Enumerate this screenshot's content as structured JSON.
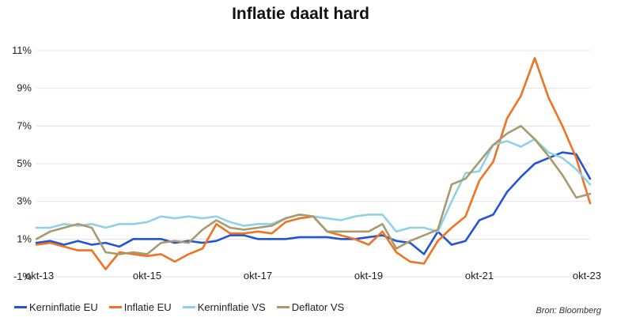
{
  "chart_data": {
    "type": "line",
    "title": "Inflatie daalt hard",
    "xlabel": "",
    "ylabel": "",
    "x_range": [
      2013.75,
      2023.75
    ],
    "x_tick_values": [
      2013.75,
      2015.75,
      2017.75,
      2019.75,
      2021.75,
      2023.75
    ],
    "x_tick_labels": [
      "okt-13",
      "okt-15",
      "okt-17",
      "okt-19",
      "okt-21",
      "okt-23"
    ],
    "ylim": [
      -1,
      11
    ],
    "y_tick_values": [
      -1,
      1,
      3,
      5,
      7,
      9,
      11
    ],
    "y_tick_labels": [
      "-1%",
      "1%",
      "3%",
      "5%",
      "7%",
      "9%",
      "11%"
    ],
    "grid": true,
    "legend_position": "bottom-left",
    "series": [
      {
        "name": "Kerninflatie EU",
        "color": "#2255d6",
        "points": [
          [
            2013.75,
            0.8
          ],
          [
            2014.0,
            0.9
          ],
          [
            2014.25,
            0.7
          ],
          [
            2014.5,
            0.9
          ],
          [
            2014.75,
            0.7
          ],
          [
            2015.0,
            0.8
          ],
          [
            2015.25,
            0.6
          ],
          [
            2015.5,
            1.0
          ],
          [
            2015.75,
            1.0
          ],
          [
            2016.0,
            1.0
          ],
          [
            2016.25,
            0.8
          ],
          [
            2016.5,
            0.9
          ],
          [
            2016.75,
            0.8
          ],
          [
            2017.0,
            0.9
          ],
          [
            2017.25,
            1.2
          ],
          [
            2017.5,
            1.2
          ],
          [
            2017.75,
            1.0
          ],
          [
            2018.0,
            1.0
          ],
          [
            2018.25,
            1.0
          ],
          [
            2018.5,
            1.1
          ],
          [
            2018.75,
            1.1
          ],
          [
            2019.0,
            1.1
          ],
          [
            2019.25,
            1.0
          ],
          [
            2019.5,
            1.0
          ],
          [
            2019.75,
            1.1
          ],
          [
            2020.0,
            1.2
          ],
          [
            2020.25,
            0.9
          ],
          [
            2020.5,
            0.8
          ],
          [
            2020.75,
            0.2
          ],
          [
            2021.0,
            1.4
          ],
          [
            2021.25,
            0.7
          ],
          [
            2021.5,
            0.9
          ],
          [
            2021.75,
            2.0
          ],
          [
            2022.0,
            2.3
          ],
          [
            2022.25,
            3.5
          ],
          [
            2022.5,
            4.3
          ],
          [
            2022.75,
            5.0
          ],
          [
            2023.0,
            5.3
          ],
          [
            2023.25,
            5.6
          ],
          [
            2023.5,
            5.5
          ],
          [
            2023.75,
            4.2
          ]
        ]
      },
      {
        "name": "Inflatie EU",
        "color": "#f07323",
        "points": [
          [
            2013.75,
            0.7
          ],
          [
            2014.0,
            0.8
          ],
          [
            2014.25,
            0.6
          ],
          [
            2014.5,
            0.4
          ],
          [
            2014.75,
            0.4
          ],
          [
            2015.0,
            -0.6
          ],
          [
            2015.25,
            0.3
          ],
          [
            2015.5,
            0.2
          ],
          [
            2015.75,
            0.1
          ],
          [
            2016.0,
            0.2
          ],
          [
            2016.25,
            -0.2
          ],
          [
            2016.5,
            0.2
          ],
          [
            2016.75,
            0.5
          ],
          [
            2017.0,
            1.8
          ],
          [
            2017.25,
            1.3
          ],
          [
            2017.5,
            1.3
          ],
          [
            2017.75,
            1.4
          ],
          [
            2018.0,
            1.3
          ],
          [
            2018.25,
            1.9
          ],
          [
            2018.5,
            2.1
          ],
          [
            2018.75,
            2.2
          ],
          [
            2019.0,
            1.4
          ],
          [
            2019.25,
            1.2
          ],
          [
            2019.5,
            1.0
          ],
          [
            2019.75,
            0.7
          ],
          [
            2020.0,
            1.4
          ],
          [
            2020.25,
            0.3
          ],
          [
            2020.5,
            -0.2
          ],
          [
            2020.75,
            -0.3
          ],
          [
            2021.0,
            0.9
          ],
          [
            2021.25,
            1.6
          ],
          [
            2021.5,
            2.2
          ],
          [
            2021.75,
            4.1
          ],
          [
            2022.0,
            5.1
          ],
          [
            2022.25,
            7.4
          ],
          [
            2022.5,
            8.6
          ],
          [
            2022.75,
            10.6
          ],
          [
            2023.0,
            8.5
          ],
          [
            2023.25,
            7.0
          ],
          [
            2023.5,
            5.3
          ],
          [
            2023.75,
            2.9
          ]
        ]
      },
      {
        "name": "Kerninflatie VS",
        "color": "#8fd1e8",
        "points": [
          [
            2013.75,
            1.6
          ],
          [
            2014.0,
            1.6
          ],
          [
            2014.25,
            1.8
          ],
          [
            2014.5,
            1.7
          ],
          [
            2014.75,
            1.8
          ],
          [
            2015.0,
            1.6
          ],
          [
            2015.25,
            1.8
          ],
          [
            2015.5,
            1.8
          ],
          [
            2015.75,
            1.9
          ],
          [
            2016.0,
            2.2
          ],
          [
            2016.25,
            2.1
          ],
          [
            2016.5,
            2.2
          ],
          [
            2016.75,
            2.1
          ],
          [
            2017.0,
            2.2
          ],
          [
            2017.25,
            1.9
          ],
          [
            2017.5,
            1.7
          ],
          [
            2017.75,
            1.8
          ],
          [
            2018.0,
            1.8
          ],
          [
            2018.25,
            2.1
          ],
          [
            2018.5,
            2.3
          ],
          [
            2018.75,
            2.2
          ],
          [
            2019.0,
            2.1
          ],
          [
            2019.25,
            2.0
          ],
          [
            2019.5,
            2.2
          ],
          [
            2019.75,
            2.3
          ],
          [
            2020.0,
            2.3
          ],
          [
            2020.25,
            1.4
          ],
          [
            2020.5,
            1.6
          ],
          [
            2020.75,
            1.6
          ],
          [
            2021.0,
            1.4
          ],
          [
            2021.25,
            3.0
          ],
          [
            2021.5,
            4.5
          ],
          [
            2021.75,
            4.6
          ],
          [
            2022.0,
            6.0
          ],
          [
            2022.25,
            6.2
          ],
          [
            2022.5,
            5.9
          ],
          [
            2022.75,
            6.3
          ],
          [
            2023.0,
            5.6
          ],
          [
            2023.25,
            5.3
          ],
          [
            2023.5,
            4.7
          ],
          [
            2023.75,
            3.9
          ]
        ]
      },
      {
        "name": "Deflator VS",
        "color": "#a89a6e",
        "points": [
          [
            2013.75,
            1.0
          ],
          [
            2014.0,
            1.4
          ],
          [
            2014.25,
            1.6
          ],
          [
            2014.5,
            1.8
          ],
          [
            2014.75,
            1.6
          ],
          [
            2015.0,
            0.3
          ],
          [
            2015.25,
            0.2
          ],
          [
            2015.5,
            0.3
          ],
          [
            2015.75,
            0.2
          ],
          [
            2016.0,
            0.8
          ],
          [
            2016.25,
            0.9
          ],
          [
            2016.5,
            0.8
          ],
          [
            2016.75,
            1.5
          ],
          [
            2017.0,
            2.0
          ],
          [
            2017.25,
            1.6
          ],
          [
            2017.5,
            1.5
          ],
          [
            2017.75,
            1.6
          ],
          [
            2018.0,
            1.7
          ],
          [
            2018.25,
            2.1
          ],
          [
            2018.5,
            2.3
          ],
          [
            2018.75,
            2.2
          ],
          [
            2019.0,
            1.4
          ],
          [
            2019.25,
            1.4
          ],
          [
            2019.5,
            1.4
          ],
          [
            2019.75,
            1.4
          ],
          [
            2020.0,
            1.8
          ],
          [
            2020.25,
            0.5
          ],
          [
            2020.5,
            0.9
          ],
          [
            2020.75,
            1.2
          ],
          [
            2021.0,
            1.5
          ],
          [
            2021.25,
            3.9
          ],
          [
            2021.5,
            4.2
          ],
          [
            2021.75,
            5.1
          ],
          [
            2022.0,
            6.0
          ],
          [
            2022.25,
            6.6
          ],
          [
            2022.5,
            7.0
          ],
          [
            2022.75,
            6.3
          ],
          [
            2023.0,
            5.4
          ],
          [
            2023.25,
            4.4
          ],
          [
            2023.5,
            3.2
          ],
          [
            2023.75,
            3.4
          ]
        ]
      }
    ],
    "source": "Bron: Bloomberg"
  }
}
